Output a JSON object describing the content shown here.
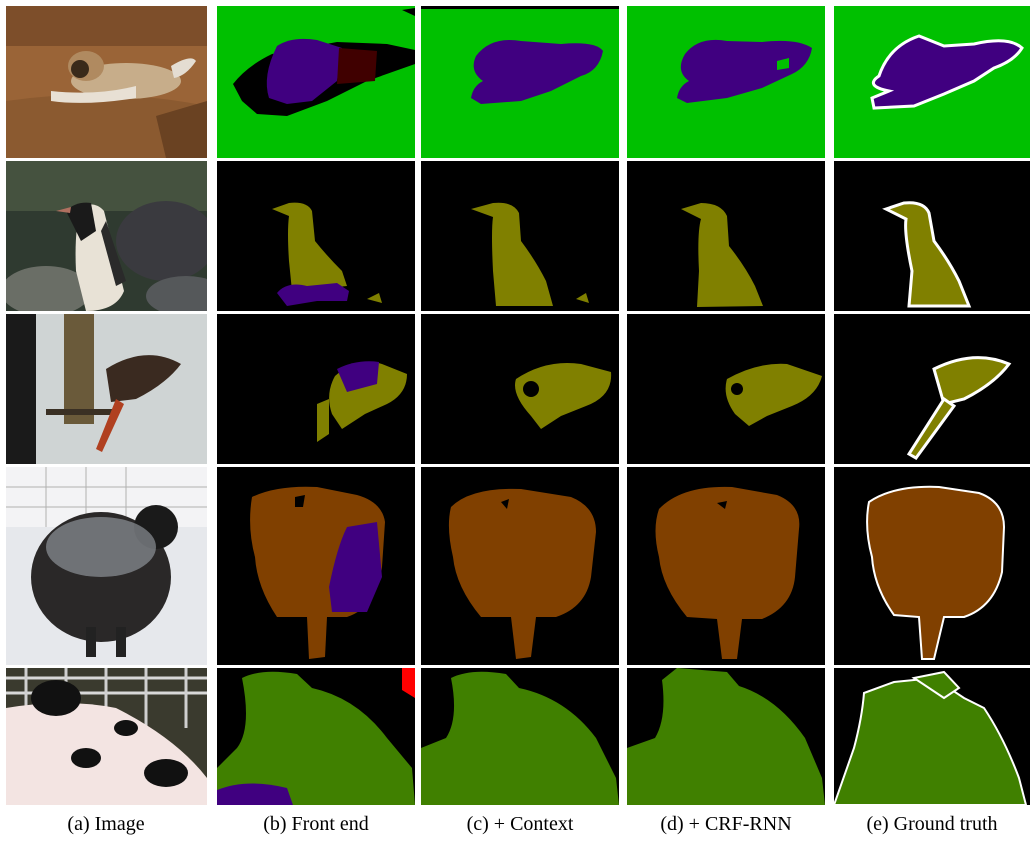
{
  "captions": {
    "a": "(a) Image",
    "b": "(b) Front end",
    "c": "(c) + Context",
    "d": "(d) + CRF-RNN",
    "e": "(e) Ground truth"
  },
  "label_colors": {
    "background_pascal": "#000000",
    "sofa_green": "#00c000",
    "dog_purple": "#400080",
    "cat_maroon": "#400000",
    "bird_olive": "#808000",
    "sheep_brown": "#804000",
    "cow_green": "#408000",
    "person_red": "#ff0000",
    "boundary_white": "#ffffff"
  },
  "rows": [
    {
      "subject": "dog on sofa"
    },
    {
      "subject": "penguin"
    },
    {
      "subject": "bird at feeder"
    },
    {
      "subject": "sheep in snow"
    },
    {
      "subject": "cow"
    }
  ]
}
